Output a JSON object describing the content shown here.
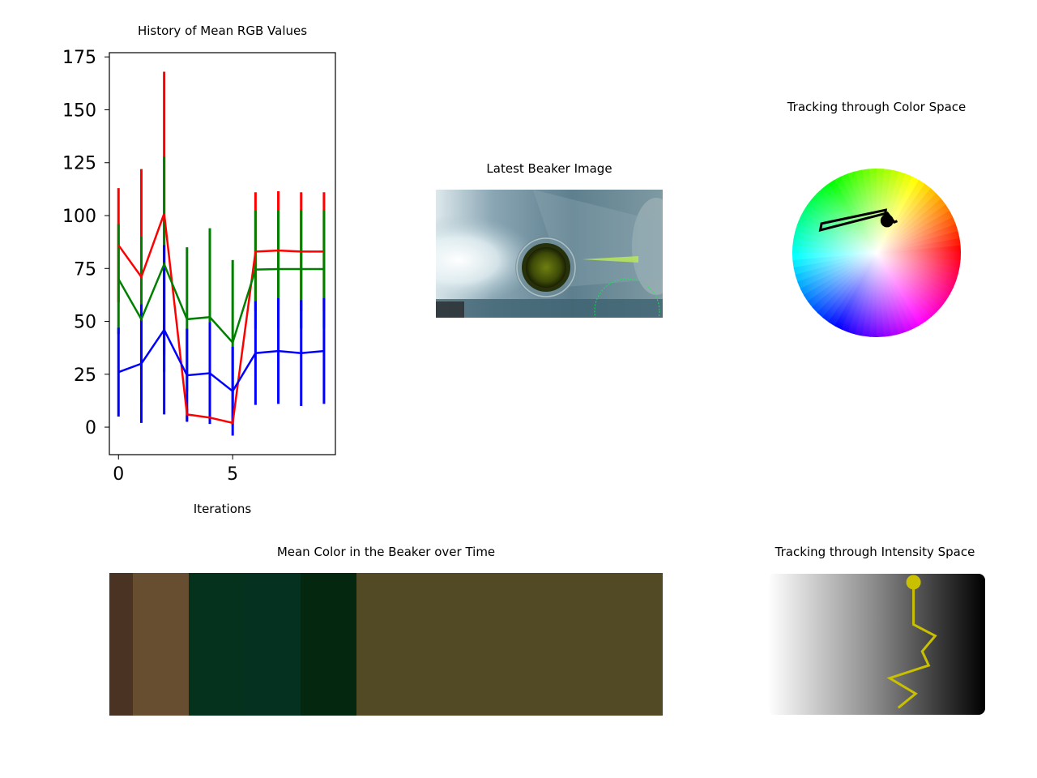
{
  "chart_data": [
    {
      "type": "line",
      "title": "History of Mean RGB Values",
      "xlabel": "Iterations",
      "ylabel": "",
      "x": [
        0,
        1,
        2,
        3,
        4,
        5,
        6,
        7,
        8,
        9
      ],
      "xticks": [
        0,
        5
      ],
      "yticks": [
        0,
        25,
        50,
        75,
        100,
        125,
        150,
        175
      ],
      "xlim": [
        -0.4,
        9.5
      ],
      "ylim": [
        -13,
        177
      ],
      "grid": false,
      "series": [
        {
          "color": "#ff0000",
          "values": [
            86,
            71,
            101,
            6,
            4.5,
            2,
            83,
            83.5,
            83,
            83
          ],
          "errors": [
            27,
            51,
            67,
            3,
            0,
            0,
            28,
            28,
            28,
            28
          ]
        },
        {
          "color": "#008000",
          "values": [
            70,
            51,
            77,
            51,
            52,
            40,
            74.5,
            74.7,
            74.7,
            74.7
          ],
          "errors": [
            26,
            39,
            51,
            34,
            42,
            39,
            28,
            28,
            28,
            28
          ]
        },
        {
          "color": "#0000ff",
          "values": [
            26,
            30,
            46,
            24.5,
            25.5,
            17,
            35,
            36,
            35,
            36
          ],
          "errors": [
            21,
            28,
            40,
            22,
            24,
            21,
            24.5,
            25,
            25,
            25
          ]
        }
      ]
    },
    {
      "type": "image",
      "title": "Latest Beaker Image"
    },
    {
      "type": "scatter",
      "title": "Tracking through Color Space",
      "polar_trajectory": [
        {
          "hue_deg": 75,
          "saturation": 0.36
        },
        {
          "hue_deg": 78,
          "saturation": 0.52
        },
        {
          "hue_deg": 152,
          "saturation": 0.74
        },
        {
          "hue_deg": 158,
          "saturation": 0.72
        },
        {
          "hue_deg": 75,
          "saturation": 0.49
        },
        {
          "hue_deg": 60,
          "saturation": 0.42
        },
        {
          "hue_deg": 57,
          "saturation": 0.45
        }
      ],
      "current_point": {
        "hue_deg": 72,
        "saturation": 0.4
      }
    },
    {
      "type": "heatmap",
      "title": "Mean Color in the Beaker over Time",
      "colors": [
        "#4a3322",
        "#684e30",
        "#04321c",
        "#053120",
        "#03280f",
        "#524a25",
        "#524a25",
        "#524a25",
        "#524a25",
        "#524a25"
      ]
    },
    {
      "type": "line",
      "title": "Tracking through Intensity Space",
      "x": [
        0.67,
        0.67,
        0.77,
        0.71,
        0.74,
        0.56,
        0.68,
        0.6
      ],
      "y": [
        0.94,
        0.64,
        0.56,
        0.45,
        0.35,
        0.26,
        0.15,
        0.05
      ],
      "line_color": "#c8c000"
    }
  ],
  "colors": {
    "red": "#ff0000",
    "green": "#008000",
    "blue": "#0000ff",
    "track": "#c8c000"
  }
}
